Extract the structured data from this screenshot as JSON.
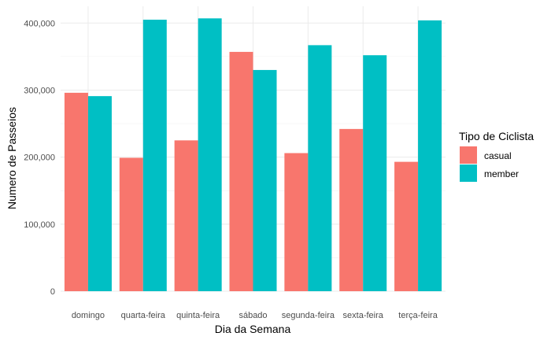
{
  "chart_data": {
    "type": "bar",
    "categories": [
      "domingo",
      "quarta-feira",
      "quinta-feira",
      "sábado",
      "segunda-feira",
      "sexta-feira",
      "terça-feira"
    ],
    "series": [
      {
        "name": "casual",
        "color": "#F8766D",
        "values": [
          296000,
          199000,
          225000,
          357000,
          206000,
          242000,
          193000
        ]
      },
      {
        "name": "member",
        "color": "#00BFC4",
        "values": [
          291000,
          405000,
          407000,
          330000,
          367000,
          352000,
          404000
        ]
      }
    ],
    "xlabel": "Dia da Semana",
    "ylabel": "Numero de Passeios",
    "ylim": [
      0,
      425000
    ],
    "yticks": [
      0,
      100000,
      200000,
      300000,
      400000
    ],
    "ytick_labels": [
      "0",
      "100,000",
      "200,000",
      "300,000",
      "400,000"
    ],
    "legend": {
      "title": "Tipo de Ciclista",
      "position": "right"
    },
    "grid": true
  }
}
